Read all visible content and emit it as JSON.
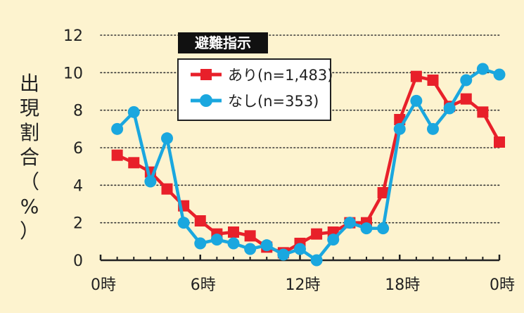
{
  "chart_data": {
    "type": "line",
    "ylabel": "出現割合（%）",
    "ylim": [
      0,
      12
    ],
    "yticks": [
      0,
      2,
      4,
      6,
      8,
      10,
      12
    ],
    "xlim": [
      0,
      24
    ],
    "xticks": [
      0,
      6,
      12,
      18,
      24
    ],
    "xtick_labels": [
      "0時",
      "6時",
      "12時",
      "18時",
      "0時"
    ],
    "grid": true,
    "legend": {
      "title": "避難指示",
      "placement": "top-center"
    },
    "series": [
      {
        "name": "あり(n=1,483)",
        "color": "#e8202a",
        "marker": "square",
        "x": [
          1,
          2,
          3,
          4,
          5,
          6,
          7,
          8,
          9,
          10,
          11,
          12,
          13,
          14,
          15,
          16,
          17,
          18,
          19,
          20,
          21,
          22,
          23,
          24
        ],
        "values": [
          5.6,
          5.2,
          4.7,
          3.8,
          2.9,
          2.1,
          1.4,
          1.5,
          1.3,
          0.7,
          0.4,
          0.9,
          1.4,
          1.5,
          2.0,
          2.0,
          3.6,
          7.5,
          9.8,
          9.6,
          8.2,
          8.6,
          7.9,
          6.3
        ]
      },
      {
        "name": "なし(n=353)",
        "color": "#1aa7df",
        "marker": "circle",
        "x": [
          1,
          2,
          3,
          4,
          5,
          6,
          7,
          8,
          9,
          10,
          11,
          12,
          13,
          14,
          15,
          16,
          17,
          18,
          19,
          20,
          21,
          22,
          23,
          24
        ],
        "values": [
          7.0,
          7.9,
          4.2,
          6.5,
          2.0,
          0.9,
          1.1,
          0.9,
          0.6,
          0.8,
          0.3,
          0.6,
          0.0,
          1.1,
          2.0,
          1.7,
          1.7,
          7.0,
          8.5,
          7.0,
          8.1,
          9.6,
          10.2,
          9.9
        ]
      }
    ]
  }
}
